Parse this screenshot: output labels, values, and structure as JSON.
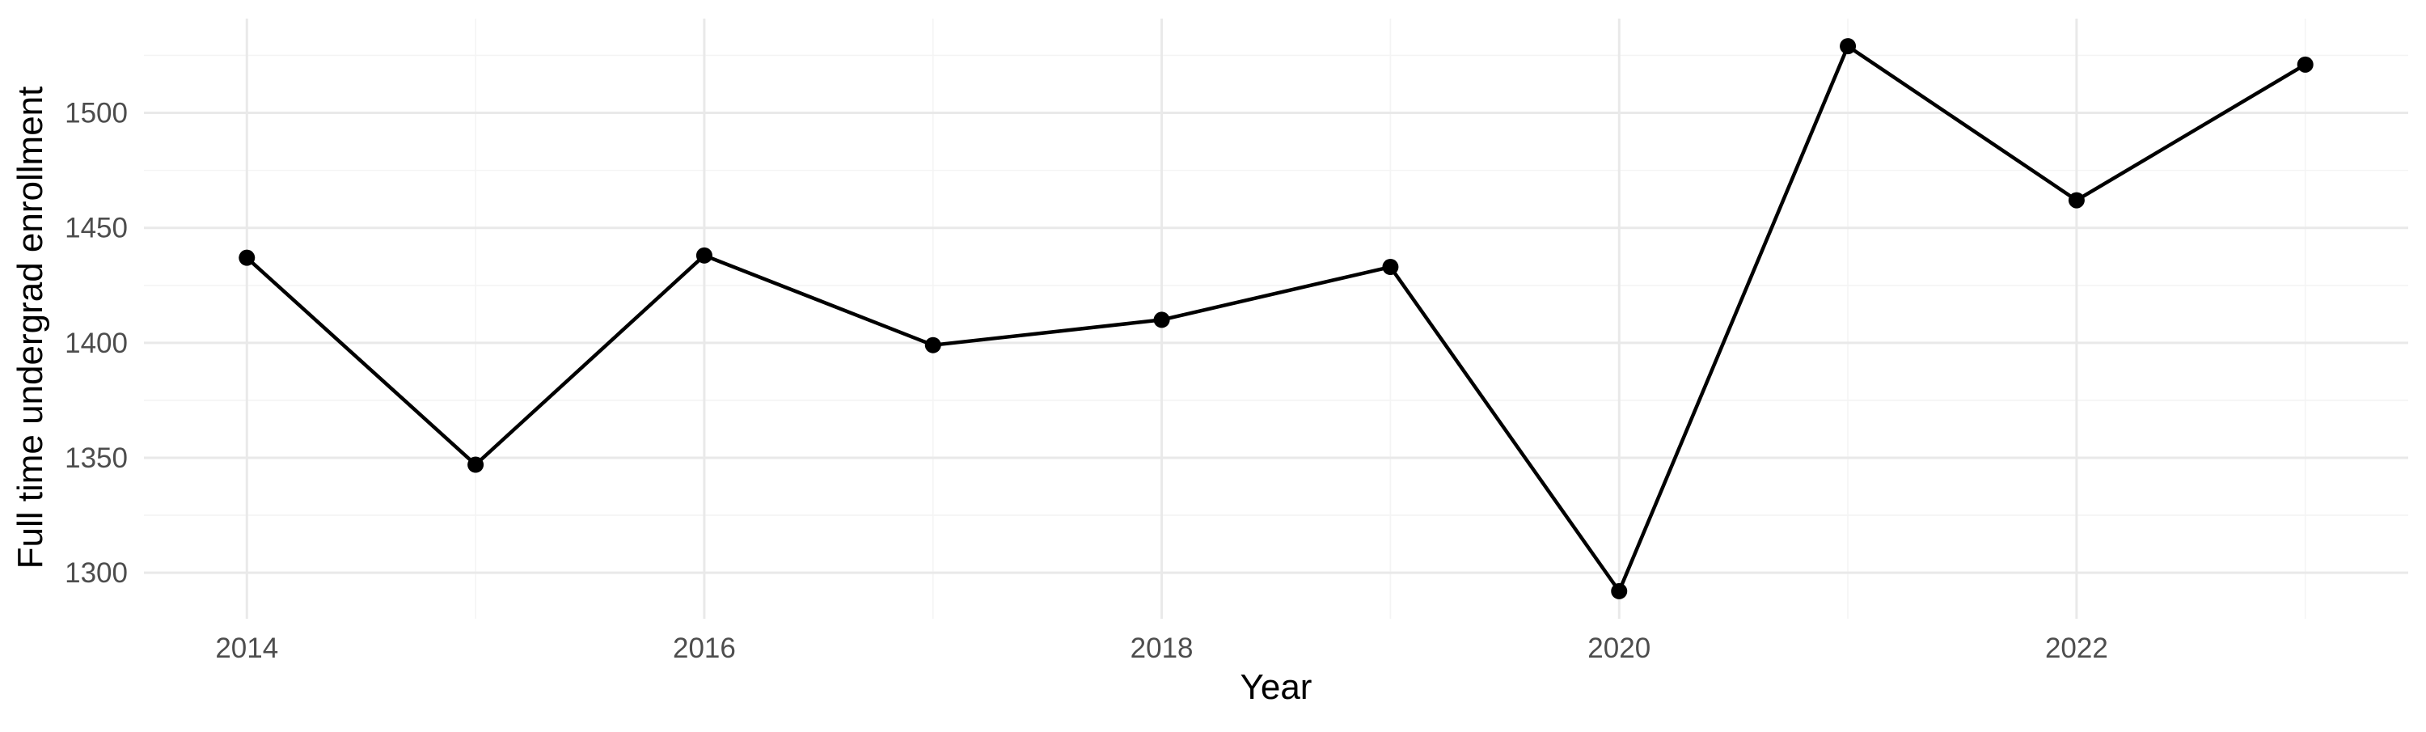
{
  "chart_data": {
    "type": "line",
    "title": "",
    "xlabel": "Year",
    "ylabel": "Full time undergrad enrollment",
    "series": [
      {
        "name": "Full time undergrad enrollment",
        "x": [
          2014,
          2015,
          2016,
          2017,
          2018,
          2019,
          2020,
          2021,
          2022,
          2023
        ],
        "values": [
          1437,
          1347,
          1438,
          1399,
          1410,
          1433,
          1292,
          1529,
          1462,
          1521
        ]
      }
    ],
    "x_ticks": [
      2014,
      2016,
      2018,
      2020,
      2022
    ],
    "x_tick_labels": [
      "2014",
      "2016",
      "2018",
      "2020",
      "2022"
    ],
    "y_ticks": [
      1300,
      1350,
      1400,
      1450,
      1500
    ],
    "y_tick_labels": [
      "1300",
      "1350",
      "1400",
      "1450",
      "1500"
    ],
    "xlim": [
      2013.55,
      2023.45
    ],
    "ylim": [
      1280,
      1541
    ],
    "grid": "major-and-minor",
    "legend": false,
    "marker": "filled-circle",
    "colors": {
      "line": "#000000",
      "point": "#000000",
      "grid_major": "#E9E9E9",
      "grid_minor": "#F4F4F4",
      "axis_text": "#4D4D4D",
      "axis_title": "#000000",
      "background": "#FFFFFF"
    }
  }
}
